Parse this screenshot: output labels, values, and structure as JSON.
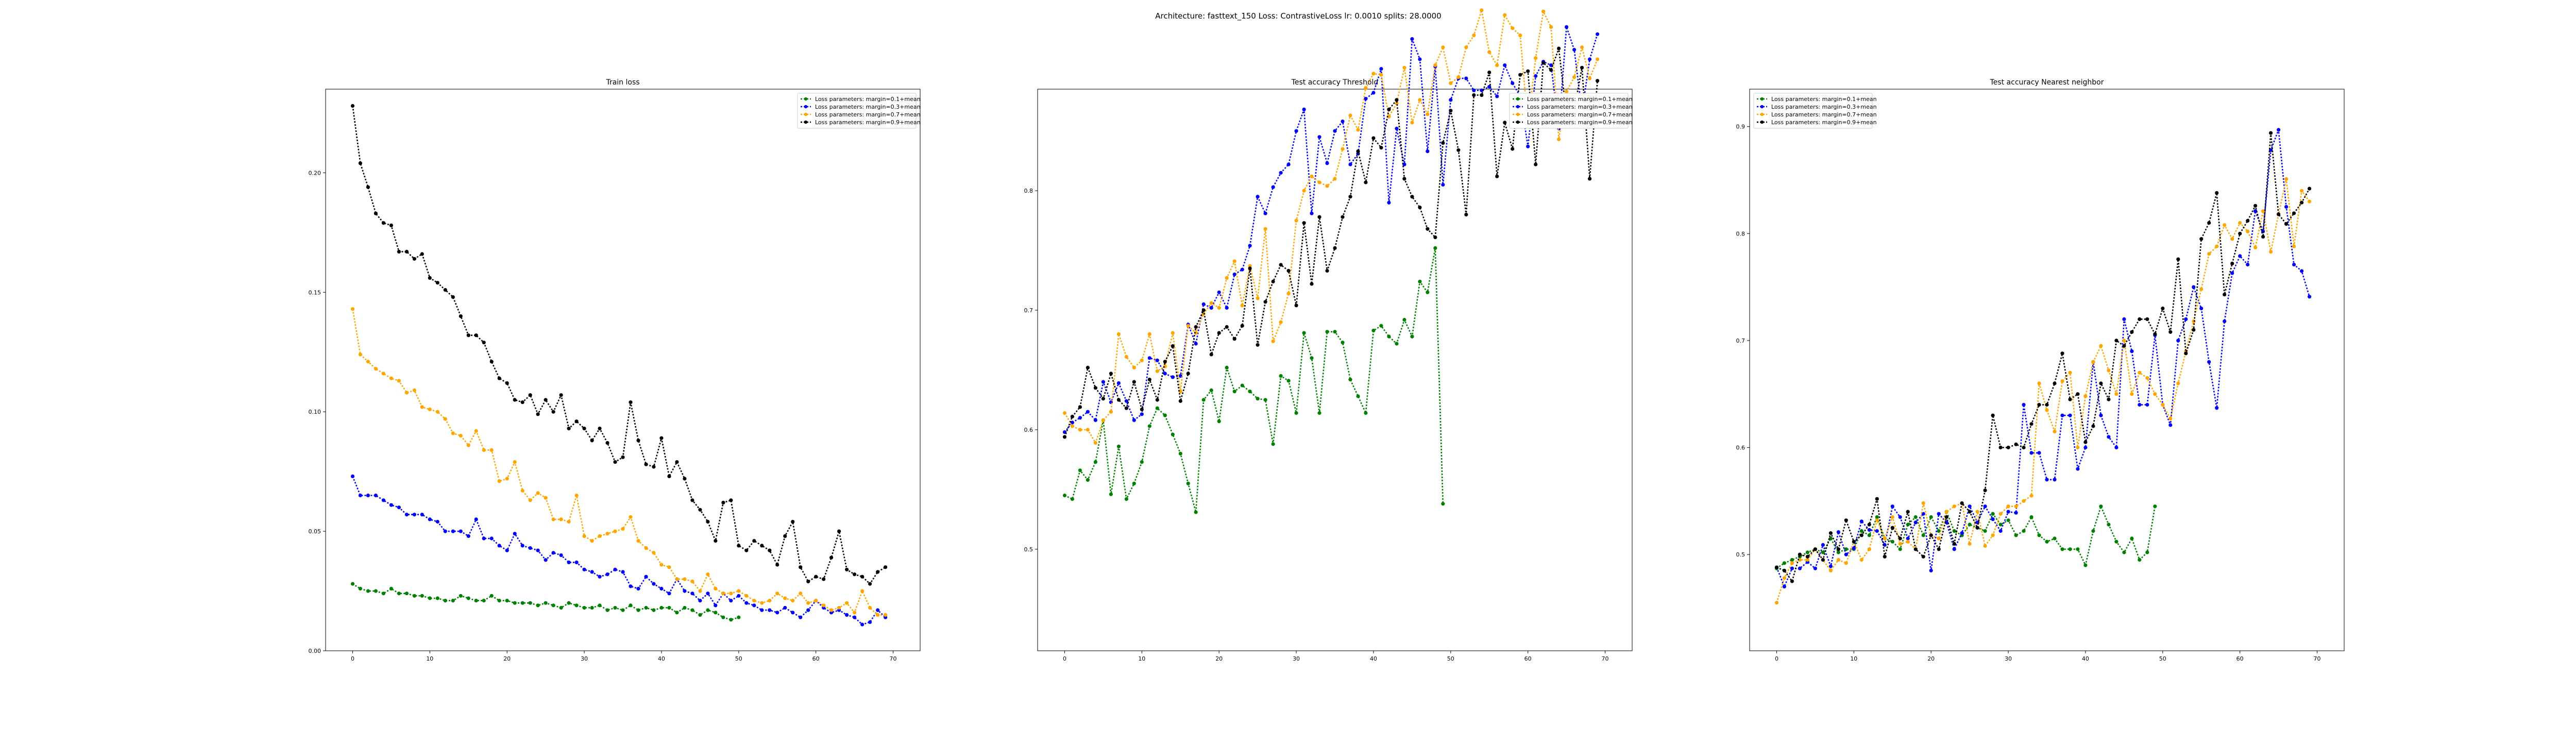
{
  "suptitle": "Architecture: fasttext_150 Loss: ContrastiveLoss lr: 0.0010 splits: 28.0000",
  "colors": {
    "Loss parameters: margin=0.1+mean": "green",
    "Loss parameters: margin=0.3+mean": "blue",
    "Loss parameters: margin=0.7+mean": "orange",
    "Loss parameters: margin=0.9+mean": "black"
  },
  "chart_data": [
    {
      "type": "line",
      "title": "Train loss",
      "xlabel": "",
      "ylabel": "",
      "xlim": [
        -3.5,
        73.5
      ],
      "ylim": [
        0.0,
        0.235
      ],
      "xticks": [
        0,
        10,
        20,
        30,
        40,
        50,
        60,
        70
      ],
      "yticks": [
        0.0,
        0.05,
        0.1,
        0.15,
        0.2
      ],
      "ytick_labels": [
        "0.00",
        "0.05",
        "0.10",
        "0.15",
        "0.20"
      ],
      "legend_position": "upper right",
      "series": [
        {
          "name": "Loss parameters: margin=0.1+mean",
          "x_start": 0,
          "values": [
            0.028,
            0.026,
            0.025,
            0.025,
            0.024,
            0.026,
            0.024,
            0.024,
            0.023,
            0.023,
            0.022,
            0.022,
            0.021,
            0.021,
            0.023,
            0.022,
            0.021,
            0.021,
            0.023,
            0.021,
            0.021,
            0.02,
            0.02,
            0.02,
            0.019,
            0.02,
            0.019,
            0.018,
            0.02,
            0.019,
            0.018,
            0.018,
            0.019,
            0.017,
            0.018,
            0.017,
            0.019,
            0.017,
            0.018,
            0.017,
            0.018,
            0.018,
            0.016,
            0.018,
            0.017,
            0.015,
            0.017,
            0.016,
            0.014,
            0.013,
            0.014
          ]
        },
        {
          "name": "Loss parameters: margin=0.3+mean",
          "x_start": 0,
          "values": [
            0.073,
            0.065,
            0.065,
            0.065,
            0.063,
            0.061,
            0.06,
            0.057,
            0.057,
            0.057,
            0.055,
            0.054,
            0.05,
            0.05,
            0.05,
            0.048,
            0.055,
            0.047,
            0.047,
            0.044,
            0.042,
            0.049,
            0.044,
            0.043,
            0.042,
            0.038,
            0.041,
            0.04,
            0.037,
            0.037,
            0.034,
            0.033,
            0.031,
            0.032,
            0.034,
            0.033,
            0.027,
            0.026,
            0.031,
            0.028,
            0.026,
            0.024,
            0.03,
            0.025,
            0.024,
            0.021,
            0.024,
            0.019,
            0.024,
            0.021,
            0.023,
            0.02,
            0.019,
            0.017,
            0.017,
            0.016,
            0.018,
            0.016,
            0.014,
            0.017,
            0.021,
            0.018,
            0.016,
            0.017,
            0.015,
            0.014,
            0.011,
            0.012,
            0.017,
            0.014
          ]
        },
        {
          "name": "Loss parameters: margin=0.7+mean",
          "x_start": 0,
          "values": [
            0.143,
            0.124,
            0.121,
            0.118,
            0.116,
            0.114,
            0.113,
            0.108,
            0.109,
            0.102,
            0.101,
            0.1,
            0.097,
            0.091,
            0.09,
            0.086,
            0.092,
            0.084,
            0.084,
            0.071,
            0.072,
            0.079,
            0.067,
            0.063,
            0.066,
            0.064,
            0.055,
            0.055,
            0.054,
            0.065,
            0.048,
            0.046,
            0.048,
            0.049,
            0.05,
            0.051,
            0.056,
            0.046,
            0.043,
            0.041,
            0.036,
            0.035,
            0.03,
            0.03,
            0.029,
            0.025,
            0.032,
            0.026,
            0.024,
            0.024,
            0.025,
            0.023,
            0.021,
            0.02,
            0.021,
            0.024,
            0.022,
            0.021,
            0.024,
            0.02,
            0.021,
            0.019,
            0.017,
            0.018,
            0.02,
            0.016,
            0.025,
            0.018,
            0.015,
            0.015
          ]
        },
        {
          "name": "Loss parameters: margin=0.9+mean",
          "x_start": 0,
          "values": [
            0.228,
            0.204,
            0.194,
            0.183,
            0.179,
            0.178,
            0.167,
            0.167,
            0.164,
            0.166,
            0.156,
            0.154,
            0.151,
            0.148,
            0.14,
            0.132,
            0.132,
            0.129,
            0.121,
            0.114,
            0.112,
            0.105,
            0.104,
            0.107,
            0.099,
            0.105,
            0.1,
            0.107,
            0.093,
            0.096,
            0.093,
            0.088,
            0.093,
            0.087,
            0.079,
            0.081,
            0.104,
            0.088,
            0.078,
            0.077,
            0.089,
            0.073,
            0.079,
            0.072,
            0.063,
            0.059,
            0.054,
            0.046,
            0.062,
            0.063,
            0.044,
            0.042,
            0.046,
            0.044,
            0.042,
            0.036,
            0.048,
            0.054,
            0.035,
            0.029,
            0.031,
            0.03,
            0.039,
            0.05,
            0.034,
            0.032,
            0.031,
            0.028,
            0.033,
            0.035
          ]
        }
      ]
    },
    {
      "type": "line",
      "title": "Test accuracy Threshold",
      "xlabel": "",
      "ylabel": "",
      "xlim": [
        -3.5,
        73.5
      ],
      "ylim": [
        0.415,
        0.885
      ],
      "xticks": [
        0,
        10,
        20,
        30,
        40,
        50,
        60,
        70
      ],
      "yticks": [
        0.5,
        0.6,
        0.7,
        0.8
      ],
      "ytick_labels": [
        "0.5",
        "0.6",
        "0.7",
        "0.8"
      ],
      "legend_position": "upper right",
      "series": [
        {
          "name": "Loss parameters: margin=0.1+mean",
          "x_start": 0,
          "values": [
            0.545,
            0.542,
            0.566,
            0.558,
            0.573,
            0.608,
            0.546,
            0.586,
            0.542,
            0.555,
            0.573,
            0.603,
            0.618,
            0.612,
            0.596,
            0.58,
            0.555,
            0.531,
            0.625,
            0.633,
            0.607,
            0.652,
            0.632,
            0.637,
            0.632,
            0.626,
            0.625,
            0.588,
            0.645,
            0.641,
            0.614,
            0.681,
            0.66,
            0.614,
            0.682,
            0.682,
            0.673,
            0.642,
            0.628,
            0.614,
            0.683,
            0.687,
            0.678,
            0.672,
            0.692,
            0.678,
            0.724,
            0.715,
            0.752,
            0.538
          ]
        },
        {
          "name": "Loss parameters: margin=0.3+mean",
          "x_start": 0,
          "values": [
            0.598,
            0.606,
            0.61,
            0.615,
            0.608,
            0.64,
            0.623,
            0.639,
            0.624,
            0.608,
            0.613,
            0.66,
            0.658,
            0.647,
            0.644,
            0.645,
            0.688,
            0.672,
            0.705,
            0.702,
            0.715,
            0.702,
            0.73,
            0.734,
            0.754,
            0.795,
            0.781,
            0.803,
            0.815,
            0.822,
            0.85,
            0.868,
            0.781,
            0.845,
            0.823,
            0.85,
            0.858,
            0.822,
            0.831,
            0.877,
            0.882,
            0.902,
            0.79,
            0.852,
            0.822,
            0.927,
            0.91,
            0.833,
            0.904,
            0.805,
            0.876,
            0.894,
            0.894,
            0.884,
            0.884,
            0.887,
            0.879,
            0.905,
            0.89,
            0.879,
            0.837,
            0.896,
            0.908,
            0.905,
            0.852,
            0.937,
            0.918,
            0.866,
            0.91,
            0.931
          ]
        },
        {
          "name": "Loss parameters: margin=0.7+mean",
          "x_start": 0,
          "values": [
            0.614,
            0.603,
            0.6,
            0.6,
            0.589,
            0.608,
            0.615,
            0.68,
            0.661,
            0.652,
            0.658,
            0.68,
            0.649,
            0.653,
            0.681,
            0.632,
            0.687,
            0.681,
            0.697,
            0.706,
            0.702,
            0.727,
            0.741,
            0.704,
            0.737,
            0.71,
            0.768,
            0.674,
            0.69,
            0.714,
            0.775,
            0.8,
            0.812,
            0.807,
            0.804,
            0.81,
            0.835,
            0.863,
            0.851,
            0.886,
            0.898,
            0.897,
            0.862,
            0.873,
            0.903,
            0.857,
            0.876,
            0.864,
            0.905,
            0.92,
            0.89,
            0.895,
            0.92,
            0.93,
            0.951,
            0.916,
            0.905,
            0.947,
            0.936,
            0.93,
            0.855,
            0.911,
            0.95,
            0.937,
            0.843,
            0.883,
            0.895,
            0.92,
            0.894,
            0.91
          ]
        },
        {
          "name": "Loss parameters: margin=0.9+mean",
          "x_start": 0,
          "values": [
            0.594,
            0.611,
            0.619,
            0.652,
            0.635,
            0.626,
            0.647,
            0.625,
            0.618,
            0.64,
            0.617,
            0.642,
            0.625,
            0.657,
            0.67,
            0.624,
            0.647,
            0.686,
            0.7,
            0.663,
            0.681,
            0.686,
            0.676,
            0.687,
            0.735,
            0.671,
            0.707,
            0.724,
            0.738,
            0.733,
            0.704,
            0.773,
            0.722,
            0.778,
            0.733,
            0.752,
            0.778,
            0.795,
            0.833,
            0.807,
            0.844,
            0.836,
            0.868,
            0.876,
            0.81,
            0.795,
            0.786,
            0.768,
            0.761,
            0.84,
            0.867,
            0.834,
            0.78,
            0.88,
            0.88,
            0.899,
            0.812,
            0.857,
            0.835,
            0.897,
            0.9,
            0.822,
            0.907,
            0.901,
            0.919,
            0.863,
            0.868,
            0.903,
            0.81,
            0.892
          ]
        }
      ]
    },
    {
      "type": "line",
      "title": "Test accuracy Nearest neighbor",
      "xlabel": "",
      "ylabel": "",
      "xlim": [
        -3.5,
        73.5
      ],
      "ylim": [
        0.41,
        0.935
      ],
      "xticks": [
        0,
        10,
        20,
        30,
        40,
        50,
        60,
        70
      ],
      "yticks": [
        0.5,
        0.6,
        0.7,
        0.8,
        0.9
      ],
      "ytick_labels": [
        "0.5",
        "0.6",
        "0.7",
        "0.8",
        "0.9"
      ],
      "legend_position": "upper left",
      "series": [
        {
          "name": "Loss parameters: margin=0.1+mean",
          "x_start": 0,
          "values": [
            0.487,
            0.492,
            0.495,
            0.498,
            0.502,
            0.505,
            0.502,
            0.515,
            0.502,
            0.505,
            0.505,
            0.522,
            0.518,
            0.535,
            0.515,
            0.512,
            0.505,
            0.528,
            0.535,
            0.518,
            0.535,
            0.522,
            0.54,
            0.522,
            0.518,
            0.528,
            0.525,
            0.522,
            0.538,
            0.528,
            0.532,
            0.518,
            0.522,
            0.535,
            0.518,
            0.512,
            0.515,
            0.505,
            0.505,
            0.505,
            0.49,
            0.522,
            0.545,
            0.528,
            0.512,
            0.502,
            0.515,
            0.495,
            0.502,
            0.545
          ]
        },
        {
          "name": "Loss parameters: margin=0.3+mean",
          "x_start": 0,
          "values": [
            0.488,
            0.47,
            0.487,
            0.487,
            0.493,
            0.487,
            0.509,
            0.489,
            0.521,
            0.5,
            0.506,
            0.531,
            0.523,
            0.522,
            0.509,
            0.545,
            0.535,
            0.515,
            0.53,
            0.538,
            0.485,
            0.538,
            0.53,
            0.505,
            0.52,
            0.545,
            0.53,
            0.545,
            0.533,
            0.522,
            0.54,
            0.539,
            0.64,
            0.595,
            0.595,
            0.57,
            0.57,
            0.63,
            0.63,
            0.58,
            0.6,
            0.68,
            0.63,
            0.61,
            0.6,
            0.72,
            0.69,
            0.64,
            0.64,
            0.705,
            0.64,
            0.621,
            0.7,
            0.72,
            0.75,
            0.73,
            0.68,
            0.637,
            0.718,
            0.763,
            0.779,
            0.771,
            0.821,
            0.802,
            0.878,
            0.897,
            0.825,
            0.771,
            0.765,
            0.741
          ]
        },
        {
          "name": "Loss parameters: margin=0.7+mean",
          "x_start": 0,
          "values": [
            0.455,
            0.478,
            0.492,
            0.495,
            0.495,
            0.505,
            0.495,
            0.485,
            0.495,
            0.492,
            0.512,
            0.495,
            0.505,
            0.532,
            0.515,
            0.535,
            0.51,
            0.512,
            0.505,
            0.548,
            0.518,
            0.515,
            0.54,
            0.545,
            0.548,
            0.51,
            0.54,
            0.508,
            0.518,
            0.538,
            0.545,
            0.545,
            0.55,
            0.555,
            0.66,
            0.635,
            0.615,
            0.662,
            0.67,
            0.6,
            0.648,
            0.68,
            0.695,
            0.672,
            0.65,
            0.7,
            0.65,
            0.67,
            0.665,
            0.65,
            0.64,
            0.627,
            0.66,
            0.69,
            0.718,
            0.748,
            0.781,
            0.788,
            0.808,
            0.795,
            0.81,
            0.802,
            0.787,
            0.821,
            0.783,
            0.818,
            0.851,
            0.788,
            0.84,
            0.83
          ]
        },
        {
          "name": "Loss parameters: margin=0.9+mean",
          "x_start": 0,
          "values": [
            0.488,
            0.485,
            0.475,
            0.5,
            0.498,
            0.505,
            0.495,
            0.52,
            0.505,
            0.532,
            0.512,
            0.518,
            0.528,
            0.552,
            0.498,
            0.525,
            0.515,
            0.54,
            0.505,
            0.498,
            0.518,
            0.505,
            0.535,
            0.51,
            0.548,
            0.54,
            0.525,
            0.56,
            0.63,
            0.6,
            0.6,
            0.603,
            0.6,
            0.622,
            0.64,
            0.64,
            0.66,
            0.688,
            0.645,
            0.65,
            0.605,
            0.62,
            0.66,
            0.645,
            0.7,
            0.695,
            0.708,
            0.72,
            0.72,
            0.706,
            0.73,
            0.708,
            0.776,
            0.688,
            0.71,
            0.795,
            0.81,
            0.838,
            0.743,
            0.772,
            0.8,
            0.812,
            0.826,
            0.797,
            0.894,
            0.818,
            0.809,
            0.819,
            0.829,
            0.842
          ]
        }
      ]
    }
  ]
}
